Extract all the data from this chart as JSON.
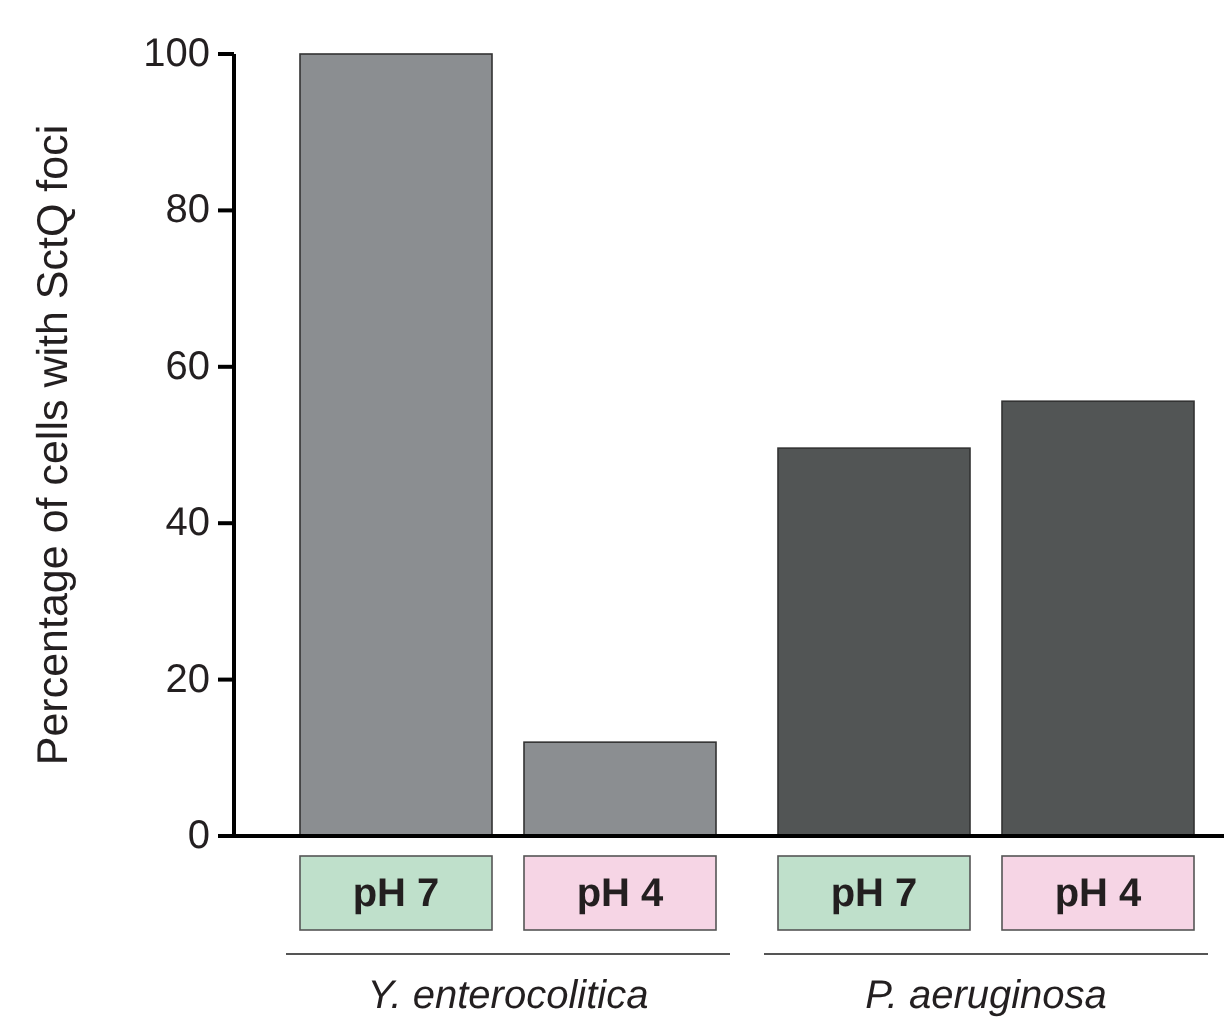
{
  "chart_data": {
    "type": "bar",
    "ylabel": "Percentage of cells with SctQ foci",
    "categories": [
      "pH 7",
      "pH 4",
      "pH 7",
      "pH 4"
    ],
    "values": [
      100,
      12,
      49.6,
      55.6
    ],
    "colors": [
      "#8b8e91",
      "#8b8e91",
      "#525555",
      "#525555"
    ],
    "ylim": [
      0,
      100
    ],
    "yticks": [
      0,
      20,
      40,
      60,
      80,
      100
    ],
    "grid": false,
    "annotations": [
      "Y. enterocolitica",
      "P. aeruginosa"
    ]
  }
}
